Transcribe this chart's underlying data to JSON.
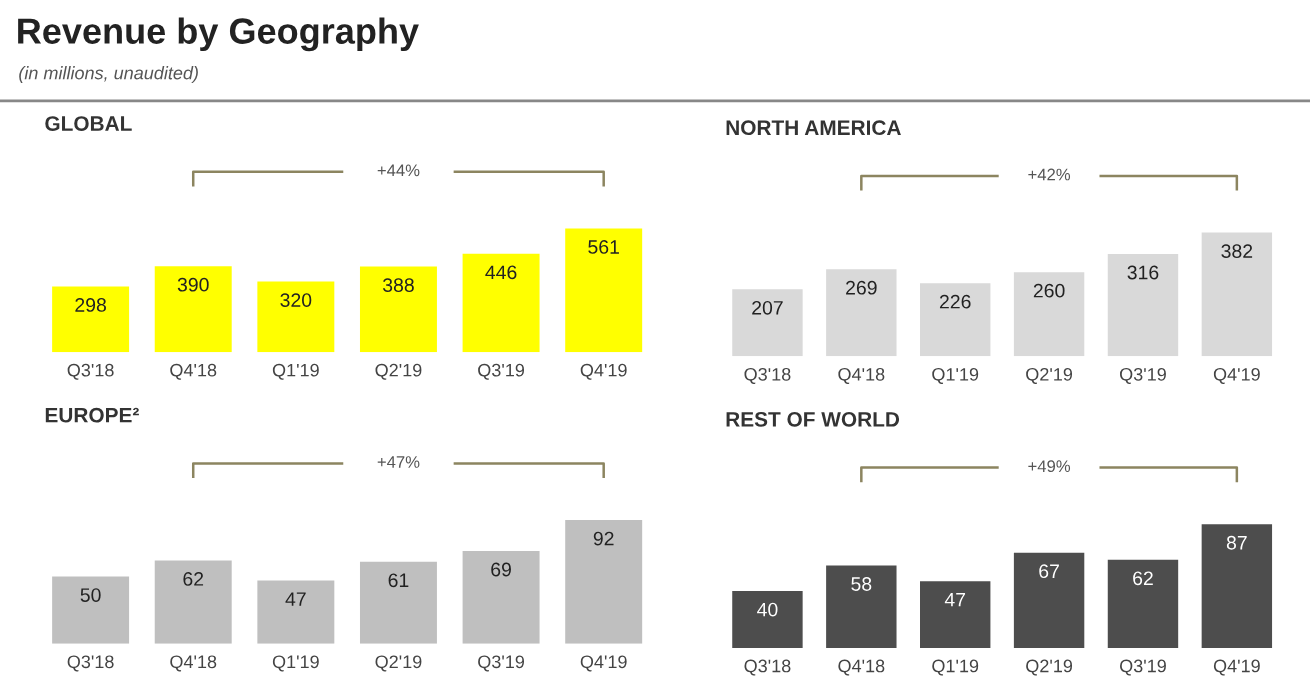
{
  "chart_data": [
    {
      "type": "other",
      "title": "Revenue by Geography",
      "subtitle": "(in millions, unaudited)"
    },
    {
      "type": "bar",
      "title": "GLOBAL",
      "categories": [
        "Q3'18",
        "Q4'18",
        "Q1'19",
        "Q2'19",
        "Q3'19",
        "Q4'19"
      ],
      "values": [
        298,
        390,
        320,
        388,
        446,
        561
      ],
      "color": "#ffff00",
      "data_labels": true,
      "annotations": [
        "+44%"
      ]
    },
    {
      "type": "bar",
      "title": "NORTH AMERICA",
      "categories": [
        "Q3'18",
        "Q4'18",
        "Q1'19",
        "Q2'19",
        "Q3'19",
        "Q4'19"
      ],
      "values": [
        207,
        269,
        226,
        260,
        316,
        382
      ],
      "color": "#d9d9d9",
      "data_labels": true,
      "annotations": [
        "+42%"
      ]
    },
    {
      "type": "bar",
      "title": "EUROPE²",
      "categories": [
        "Q3'18",
        "Q4'18",
        "Q1'19",
        "Q2'19",
        "Q3'19",
        "Q4'19"
      ],
      "values": [
        50,
        62,
        47,
        61,
        69,
        92
      ],
      "color": "#bfbfbf",
      "data_labels": true,
      "annotations": [
        "+47%"
      ]
    },
    {
      "type": "bar",
      "title": "REST OF WORLD",
      "categories": [
        "Q3'18",
        "Q4'18",
        "Q1'19",
        "Q2'19",
        "Q3'19",
        "Q4'19"
      ],
      "values": [
        40,
        58,
        47,
        67,
        62,
        87
      ],
      "color": "#4d4d4d",
      "data_labels": true,
      "annotations": [
        "+49%"
      ]
    }
  ]
}
